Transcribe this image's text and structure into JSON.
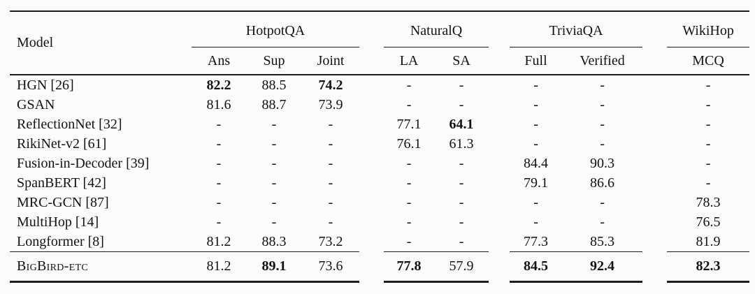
{
  "page": {
    "background": "#fbfbfb",
    "text_color": "#121212",
    "rule_color": "#1c1c1c"
  },
  "table": {
    "model_header": "Model",
    "col_groups": [
      {
        "label": "HotpotQA",
        "subs": [
          "Ans",
          "Sup",
          "Joint"
        ]
      },
      {
        "label": "NaturalQ",
        "subs": [
          "LA",
          "SA"
        ]
      },
      {
        "label": "TriviaQA",
        "subs": [
          "Full",
          "Verified"
        ]
      },
      {
        "label": "WikiHop",
        "subs": [
          "MCQ"
        ]
      }
    ],
    "rows": [
      {
        "model": "HGN [26]",
        "values": [
          "82.2",
          "88.5",
          "74.2",
          "-",
          "-",
          "-",
          "-",
          "-"
        ],
        "bold": [
          true,
          false,
          true,
          false,
          false,
          false,
          false,
          false
        ]
      },
      {
        "model": "GSAN",
        "values": [
          "81.6",
          "88.7",
          "73.9",
          "-",
          "-",
          "-",
          "-",
          "-"
        ],
        "bold": [
          false,
          false,
          false,
          false,
          false,
          false,
          false,
          false
        ]
      },
      {
        "model": "ReflectionNet [32]",
        "values": [
          "-",
          "-",
          "-",
          "77.1",
          "64.1",
          "-",
          "-",
          "-"
        ],
        "bold": [
          false,
          false,
          false,
          false,
          true,
          false,
          false,
          false
        ]
      },
      {
        "model": "RikiNet-v2 [61]",
        "values": [
          "-",
          "-",
          "-",
          "76.1",
          "61.3",
          "-",
          "-",
          "-"
        ],
        "bold": [
          false,
          false,
          false,
          false,
          false,
          false,
          false,
          false
        ]
      },
      {
        "model": "Fusion-in-Decoder [39]",
        "values": [
          "-",
          "-",
          "-",
          "-",
          "-",
          "84.4",
          "90.3",
          "-"
        ],
        "bold": [
          false,
          false,
          false,
          false,
          false,
          false,
          false,
          false
        ]
      },
      {
        "model": "SpanBERT [42]",
        "values": [
          "-",
          "-",
          "-",
          "-",
          "-",
          "79.1",
          "86.6",
          "-"
        ],
        "bold": [
          false,
          false,
          false,
          false,
          false,
          false,
          false,
          false
        ]
      },
      {
        "model": "MRC-GCN [87]",
        "values": [
          "-",
          "-",
          "-",
          "-",
          "-",
          "-",
          "-",
          "78.3"
        ],
        "bold": [
          false,
          false,
          false,
          false,
          false,
          false,
          false,
          false
        ]
      },
      {
        "model": "MultiHop [14]",
        "values": [
          "-",
          "-",
          "-",
          "-",
          "-",
          "-",
          "-",
          "76.5"
        ],
        "bold": [
          false,
          false,
          false,
          false,
          false,
          false,
          false,
          false
        ]
      },
      {
        "model": "Longformer [8]",
        "values": [
          "81.2",
          "88.3",
          "73.2",
          "-",
          "-",
          "77.3",
          "85.3",
          "81.9"
        ],
        "bold": [
          false,
          false,
          false,
          false,
          false,
          false,
          false,
          false
        ]
      }
    ],
    "footer": {
      "model": "BigBird-etc",
      "values": [
        "81.2",
        "89.1",
        "73.6",
        "77.8",
        "57.9",
        "84.5",
        "92.4",
        "82.3"
      ],
      "bold": [
        false,
        true,
        false,
        true,
        false,
        true,
        true,
        true
      ]
    }
  }
}
